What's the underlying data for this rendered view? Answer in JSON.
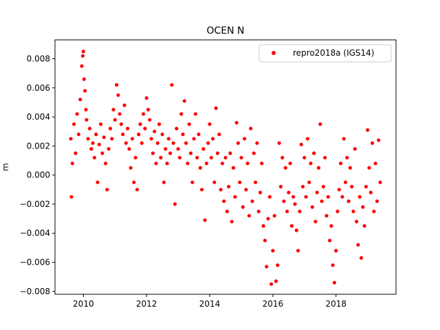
{
  "chart_data": {
    "type": "scatter",
    "title": "OCEN N",
    "xlabel": "",
    "ylabel": "m",
    "xlim": [
      2009.1,
      2019.9
    ],
    "ylim": [
      -0.0082,
      0.0093
    ],
    "xticks": [
      2010,
      2012,
      2014,
      2016,
      2018
    ],
    "xtick_labels": [
      "2010",
      "2012",
      "2014",
      "2016",
      "2018"
    ],
    "yticks": [
      -0.008,
      -0.006,
      -0.004,
      -0.002,
      0.0,
      0.002,
      0.004,
      0.006,
      0.008
    ],
    "ytick_labels": [
      "−0.008",
      "−0.006",
      "−0.004",
      "−0.002",
      "0.000",
      "0.002",
      "0.004",
      "0.006",
      "0.008"
    ],
    "grid": false,
    "legend_position": "top-right",
    "series": [
      {
        "name": "repro2018a (IGS14)",
        "color": "#ff0000",
        "marker": "circle",
        "points": [
          [
            2009.6,
            0.0025
          ],
          [
            2009.62,
            -0.0015
          ],
          [
            2009.65,
            0.0008
          ],
          [
            2009.7,
            0.0035
          ],
          [
            2009.75,
            0.0015
          ],
          [
            2009.8,
            0.0042
          ],
          [
            2009.85,
            0.0028
          ],
          [
            2009.9,
            0.0052
          ],
          [
            2009.95,
            0.0075
          ],
          [
            2009.98,
            0.0082
          ],
          [
            2010.0,
            0.0085
          ],
          [
            2010.02,
            0.0066
          ],
          [
            2010.05,
            0.0058
          ],
          [
            2010.08,
            0.0045
          ],
          [
            2010.1,
            0.0038
          ],
          [
            2010.15,
            0.0025
          ],
          [
            2010.2,
            0.0032
          ],
          [
            2010.25,
            0.0018
          ],
          [
            2010.3,
            0.0022
          ],
          [
            2010.35,
            0.0012
          ],
          [
            2010.4,
            0.0028
          ],
          [
            2010.45,
            -0.0005
          ],
          [
            2010.5,
            0.0021
          ],
          [
            2010.55,
            0.0035
          ],
          [
            2010.6,
            0.0015
          ],
          [
            2010.65,
            0.0026
          ],
          [
            2010.7,
            0.0008
          ],
          [
            2010.75,
            -0.001
          ],
          [
            2010.8,
            0.0018
          ],
          [
            2010.85,
            0.0032
          ],
          [
            2010.9,
            0.0025
          ],
          [
            2010.95,
            0.0045
          ],
          [
            2011.0,
            0.0038
          ],
          [
            2011.05,
            0.0062
          ],
          [
            2011.1,
            0.0055
          ],
          [
            2011.15,
            0.0042
          ],
          [
            2011.2,
            0.0035
          ],
          [
            2011.25,
            0.0028
          ],
          [
            2011.3,
            0.0048
          ],
          [
            2011.35,
            0.0022
          ],
          [
            2011.4,
            0.0032
          ],
          [
            2011.45,
            0.0018
          ],
          [
            2011.5,
            0.0005
          ],
          [
            2011.55,
            0.0025
          ],
          [
            2011.6,
            -0.0005
          ],
          [
            2011.65,
            0.0012
          ],
          [
            2011.7,
            -0.001
          ],
          [
            2011.75,
            0.0028
          ],
          [
            2011.8,
            0.0035
          ],
          [
            2011.85,
            0.0022
          ],
          [
            2011.9,
            0.0042
          ],
          [
            2011.95,
            0.0032
          ],
          [
            2012.0,
            0.0053
          ],
          [
            2012.05,
            0.0045
          ],
          [
            2012.1,
            0.0038
          ],
          [
            2012.15,
            0.0025
          ],
          [
            2012.2,
            0.0015
          ],
          [
            2012.25,
            0.003
          ],
          [
            2012.3,
            0.0008
          ],
          [
            2012.35,
            0.0022
          ],
          [
            2012.4,
            0.0035
          ],
          [
            2012.45,
            0.0012
          ],
          [
            2012.5,
            0.0028
          ],
          [
            2012.55,
            -0.0005
          ],
          [
            2012.6,
            0.0018
          ],
          [
            2012.65,
            0.0008
          ],
          [
            2012.7,
            0.0025
          ],
          [
            2012.75,
            0.0015
          ],
          [
            2012.8,
            0.0062
          ],
          [
            2012.85,
            0.0022
          ],
          [
            2012.9,
            -0.002
          ],
          [
            2012.95,
            0.0032
          ],
          [
            2013.0,
            0.0018
          ],
          [
            2013.05,
            0.0012
          ],
          [
            2013.1,
            0.0042
          ],
          [
            2013.15,
            0.0028
          ],
          [
            2013.2,
            0.0051
          ],
          [
            2013.25,
            0.0022
          ],
          [
            2013.3,
            0.0008
          ],
          [
            2013.35,
            0.0035
          ],
          [
            2013.4,
            0.0015
          ],
          [
            2013.45,
            -0.0005
          ],
          [
            2013.5,
            0.0025
          ],
          [
            2013.55,
            0.0042
          ],
          [
            2013.6,
            0.0012
          ],
          [
            2013.65,
            0.0028
          ],
          [
            2013.7,
            0.0005
          ],
          [
            2013.75,
            -0.001
          ],
          [
            2013.8,
            0.0018
          ],
          [
            2013.85,
            -0.0031
          ],
          [
            2013.9,
            0.0008
          ],
          [
            2013.95,
            0.0022
          ],
          [
            2014.0,
            0.0035
          ],
          [
            2014.05,
            0.0012
          ],
          [
            2014.1,
            0.0025
          ],
          [
            2014.15,
            -0.0005
          ],
          [
            2014.2,
            0.0046
          ],
          [
            2014.25,
            0.0015
          ],
          [
            2014.3,
            0.0028
          ],
          [
            2014.35,
            -0.001
          ],
          [
            2014.4,
            0.0008
          ],
          [
            2014.45,
            -0.0018
          ],
          [
            2014.5,
            0.0012
          ],
          [
            2014.55,
            -0.0025
          ],
          [
            2014.6,
            -0.0008
          ],
          [
            2014.65,
            0.0015
          ],
          [
            2014.7,
            -0.0032
          ],
          [
            2014.75,
            0.0005
          ],
          [
            2014.8,
            -0.0015
          ],
          [
            2014.85,
            0.0036
          ],
          [
            2014.9,
            0.0022
          ],
          [
            2014.95,
            -0.0005
          ],
          [
            2015.0,
            0.0012
          ],
          [
            2015.05,
            -0.0022
          ],
          [
            2015.1,
            0.0025
          ],
          [
            2015.15,
            -0.001
          ],
          [
            2015.2,
            0.0008
          ],
          [
            2015.25,
            -0.0028
          ],
          [
            2015.3,
            0.0032
          ],
          [
            2015.35,
            -0.0018
          ],
          [
            2015.4,
            0.0015
          ],
          [
            2015.45,
            -0.0005
          ],
          [
            2015.5,
            0.0022
          ],
          [
            2015.55,
            -0.0025
          ],
          [
            2015.6,
            -0.0012
          ],
          [
            2015.65,
            0.0008
          ],
          [
            2015.7,
            -0.0035
          ],
          [
            2015.75,
            -0.0045
          ],
          [
            2015.8,
            -0.0063
          ],
          [
            2015.85,
            -0.003
          ],
          [
            2015.9,
            -0.0015
          ],
          [
            2015.95,
            -0.0075
          ],
          [
            2016.0,
            -0.0052
          ],
          [
            2016.05,
            -0.0028
          ],
          [
            2016.1,
            -0.0073
          ],
          [
            2016.15,
            -0.0062
          ],
          [
            2016.2,
            0.0022
          ],
          [
            2016.25,
            -0.0008
          ],
          [
            2016.3,
            0.0012
          ],
          [
            2016.35,
            -0.0018
          ],
          [
            2016.4,
            0.0005
          ],
          [
            2016.45,
            -0.0025
          ],
          [
            2016.5,
            -0.0012
          ],
          [
            2016.55,
            0.0008
          ],
          [
            2016.6,
            -0.0035
          ],
          [
            2016.65,
            -0.0015
          ],
          [
            2016.7,
            -0.002
          ],
          [
            2016.75,
            -0.0038
          ],
          [
            2016.8,
            -0.0052
          ],
          [
            2016.85,
            -0.0025
          ],
          [
            2016.9,
            0.0021
          ],
          [
            2016.95,
            -0.0008
          ],
          [
            2017.0,
            0.0012
          ],
          [
            2017.05,
            -0.0015
          ],
          [
            2017.1,
            0.0025
          ],
          [
            2017.15,
            -0.0005
          ],
          [
            2017.2,
            0.0008
          ],
          [
            2017.25,
            -0.0022
          ],
          [
            2017.3,
            0.0015
          ],
          [
            2017.35,
            -0.0032
          ],
          [
            2017.4,
            -0.0012
          ],
          [
            2017.45,
            0.0005
          ],
          [
            2017.5,
            0.0035
          ],
          [
            2017.55,
            -0.0018
          ],
          [
            2017.6,
            -0.0008
          ],
          [
            2017.65,
            0.0012
          ],
          [
            2017.7,
            -0.0028
          ],
          [
            2017.75,
            -0.0015
          ],
          [
            2017.8,
            -0.0045
          ],
          [
            2017.85,
            -0.0035
          ],
          [
            2017.9,
            -0.0062
          ],
          [
            2017.95,
            -0.0074
          ],
          [
            2018.0,
            -0.0052
          ],
          [
            2018.05,
            -0.0025
          ],
          [
            2018.1,
            -0.001
          ],
          [
            2018.15,
            0.0008
          ],
          [
            2018.2,
            -0.0015
          ],
          [
            2018.25,
            0.0025
          ],
          [
            2018.3,
            -0.0005
          ],
          [
            2018.35,
            0.0012
          ],
          [
            2018.4,
            -0.0018
          ],
          [
            2018.45,
            0.0005
          ],
          [
            2018.5,
            -0.0008
          ],
          [
            2018.55,
            -0.0025
          ],
          [
            2018.6,
            0.0018
          ],
          [
            2018.65,
            -0.0032
          ],
          [
            2018.7,
            -0.0048
          ],
          [
            2018.75,
            -0.0015
          ],
          [
            2018.8,
            -0.0057
          ],
          [
            2018.85,
            -0.0022
          ],
          [
            2018.9,
            -0.0035
          ],
          [
            2018.95,
            -0.0008
          ],
          [
            2019.0,
            0.0031
          ],
          [
            2019.05,
            0.0005
          ],
          [
            2019.1,
            -0.0012
          ],
          [
            2019.15,
            0.0022
          ],
          [
            2019.2,
            -0.0025
          ],
          [
            2019.25,
            0.0008
          ],
          [
            2019.3,
            -0.0018
          ],
          [
            2019.35,
            0.0024
          ],
          [
            2019.4,
            -0.0005
          ]
        ]
      }
    ]
  }
}
